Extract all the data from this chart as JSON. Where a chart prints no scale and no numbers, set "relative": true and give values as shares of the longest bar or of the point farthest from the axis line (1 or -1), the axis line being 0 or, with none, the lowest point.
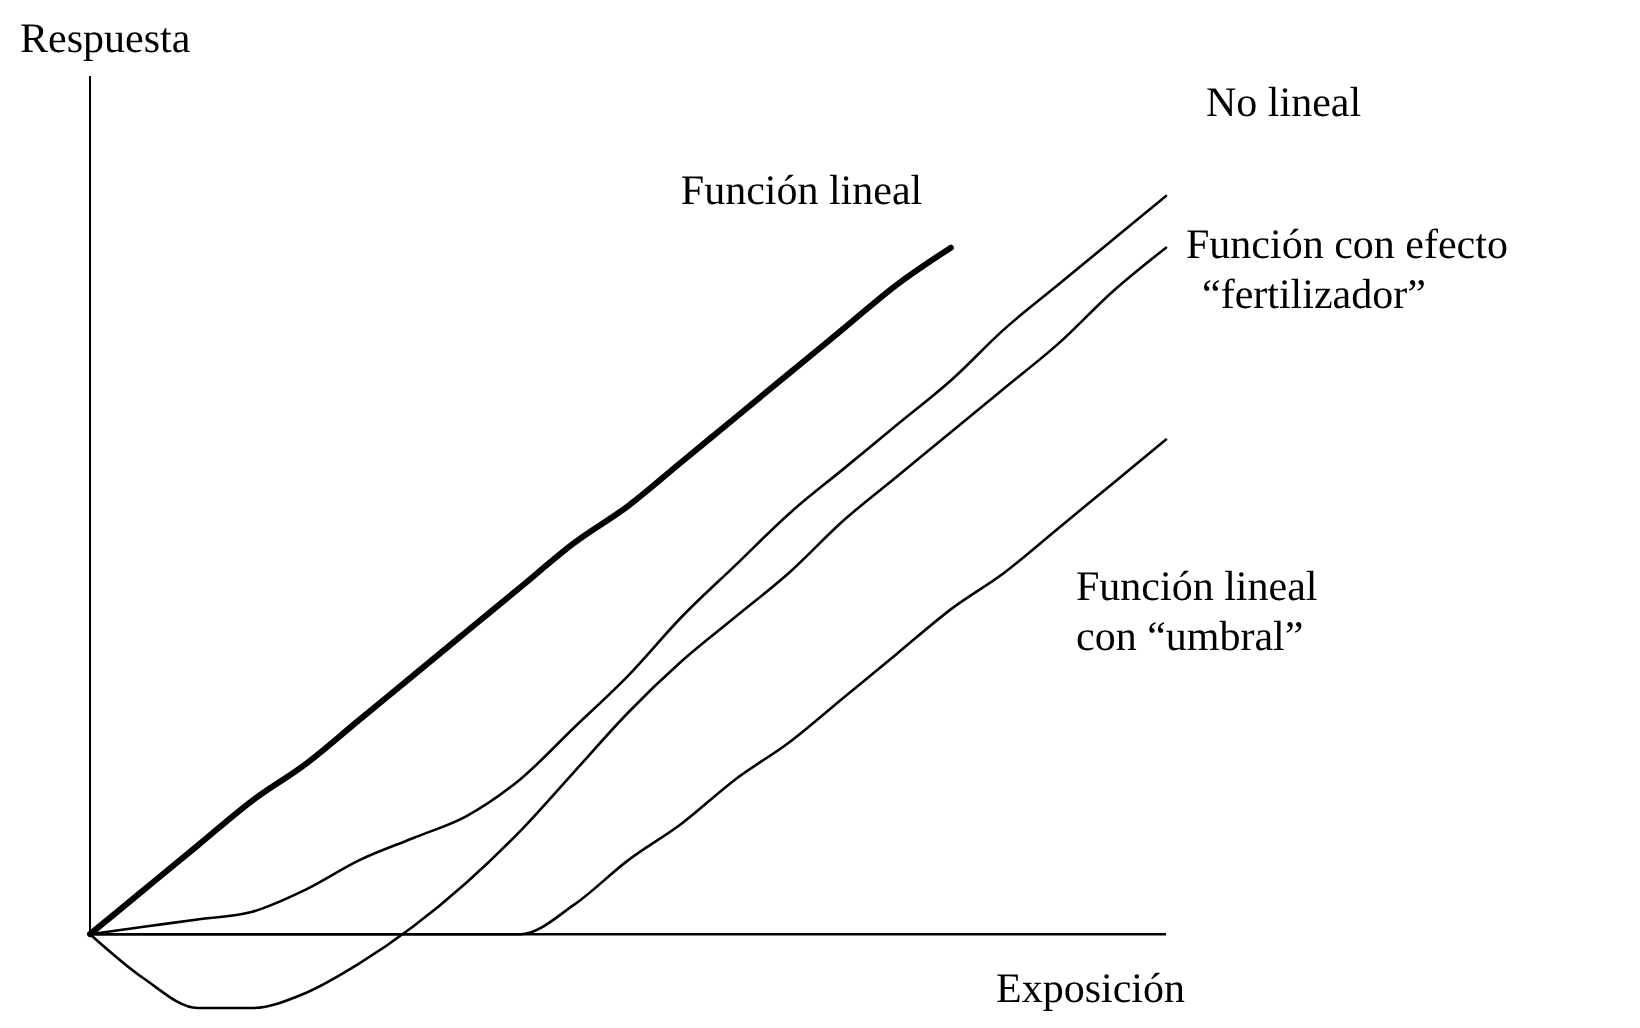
{
  "chart_data": {
    "type": "line",
    "relative": true,
    "xlabel": "Exposición",
    "ylabel": "Respuesta",
    "marker": "none",
    "line_style": "solid",
    "categories": [
      null,
      null,
      null,
      null,
      null,
      null,
      null,
      null,
      null,
      null,
      null,
      null,
      null,
      null,
      null,
      null,
      null,
      null,
      null,
      null,
      null
    ],
    "series": [
      {
        "name": "Función lineal",
        "color": "#000000",
        "values": [
          0,
          0.06,
          0.12,
          0.18,
          0.23,
          0.29,
          0.35,
          0.41,
          0.47,
          0.53,
          0.58,
          0.64,
          0.7,
          0.76,
          0.82,
          0.88,
          0.93,
          null,
          null,
          null,
          null
        ]
      },
      {
        "name": "No lineal",
        "color": "#000000",
        "values": [
          0,
          0.01,
          0.02,
          0.03,
          0.06,
          0.1,
          0.13,
          0.16,
          0.21,
          0.28,
          0.35,
          0.43,
          0.5,
          0.57,
          0.63,
          0.69,
          0.75,
          0.82,
          0.88,
          0.94,
          1
        ]
      },
      {
        "name": "Función con efecto\n“fertilizador”",
        "color": "#000000",
        "values": [
          0,
          -0.06,
          -0.1,
          -0.1,
          -0.08,
          -0.04,
          0.01,
          0.07,
          0.14,
          0.22,
          0.3,
          0.37,
          0.43,
          0.49,
          0.56,
          0.62,
          0.68,
          0.74,
          0.8,
          0.87,
          0.93
        ]
      },
      {
        "name": "Función lineal\ncon “umbral”",
        "color": "#000000",
        "values": [
          0,
          0,
          0,
          0,
          0,
          0,
          0,
          0,
          0,
          0.04,
          0.1,
          0.15,
          0.21,
          0.26,
          0.32,
          0.38,
          0.44,
          0.49,
          0.55,
          0.61,
          0.67
        ]
      }
    ]
  }
}
